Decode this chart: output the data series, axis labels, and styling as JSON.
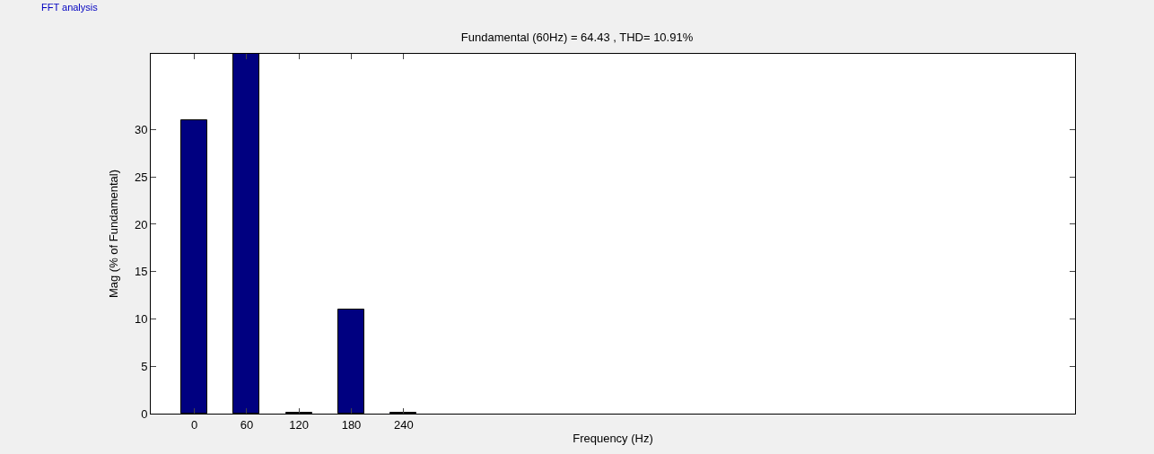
{
  "chart_data": {
    "type": "bar",
    "title": "Fundamental (60Hz) = 64.43 , THD= 10.91%",
    "xlabel": "Frequency (Hz)",
    "ylabel": "Mag (% of Fundamental)",
    "annotations": [
      "FFT analysis"
    ],
    "x": [
      0,
      60,
      120,
      180,
      240
    ],
    "values": [
      31,
      38,
      0.1,
      11,
      0.1
    ],
    "color": "#000080",
    "xlim": [
      -50,
      1010
    ],
    "xticks": [
      0,
      60,
      120,
      180,
      240
    ],
    "ylim": [
      0,
      38
    ],
    "yticks": [
      0,
      5,
      10,
      15,
      20,
      25,
      30
    ]
  }
}
